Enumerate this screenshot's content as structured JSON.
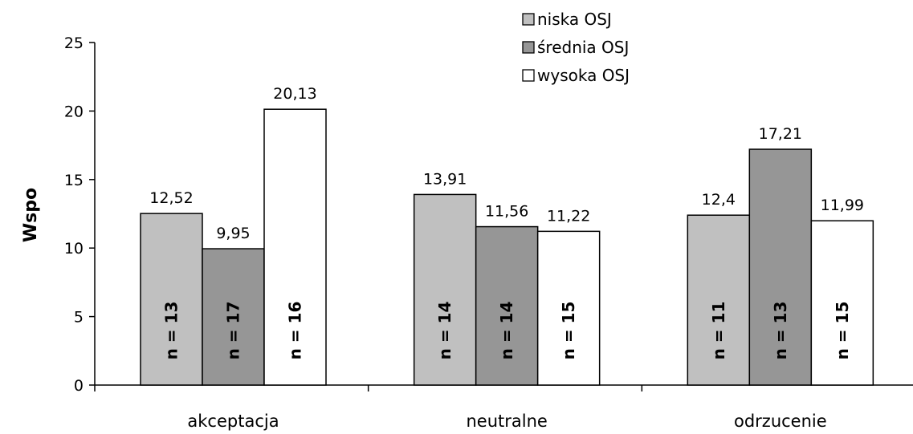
{
  "chart_data": {
    "type": "bar",
    "title": "",
    "xlabel": "",
    "ylabel": "Wspo",
    "ylim": [
      0,
      25
    ],
    "yticks": [
      0,
      5,
      10,
      15,
      20,
      25
    ],
    "grid": false,
    "legend_position": "top-right",
    "categories": [
      "akceptacja",
      "neutralne",
      "odrzucenie"
    ],
    "series": [
      {
        "name": "niska OSJ",
        "color": "#c0c0c0",
        "values": [
          12.52,
          13.91,
          12.4
        ],
        "value_labels": [
          "12,52",
          "13,91",
          "12,4"
        ],
        "n_labels": [
          "n = 13",
          "n = 14",
          "n = 11"
        ]
      },
      {
        "name": "średnia OSJ",
        "color": "#969696",
        "values": [
          9.95,
          11.56,
          17.21
        ],
        "value_labels": [
          "9,95",
          "11,56",
          "17,21"
        ],
        "n_labels": [
          "n = 17",
          "n = 14",
          "n = 13"
        ]
      },
      {
        "name": "wysoka OSJ",
        "color": "#ffffff",
        "values": [
          20.13,
          11.22,
          11.99
        ],
        "value_labels": [
          "20,13",
          "11,22",
          "11,99"
        ],
        "n_labels": [
          "n = 16",
          "n = 15",
          "n = 15"
        ]
      }
    ]
  }
}
